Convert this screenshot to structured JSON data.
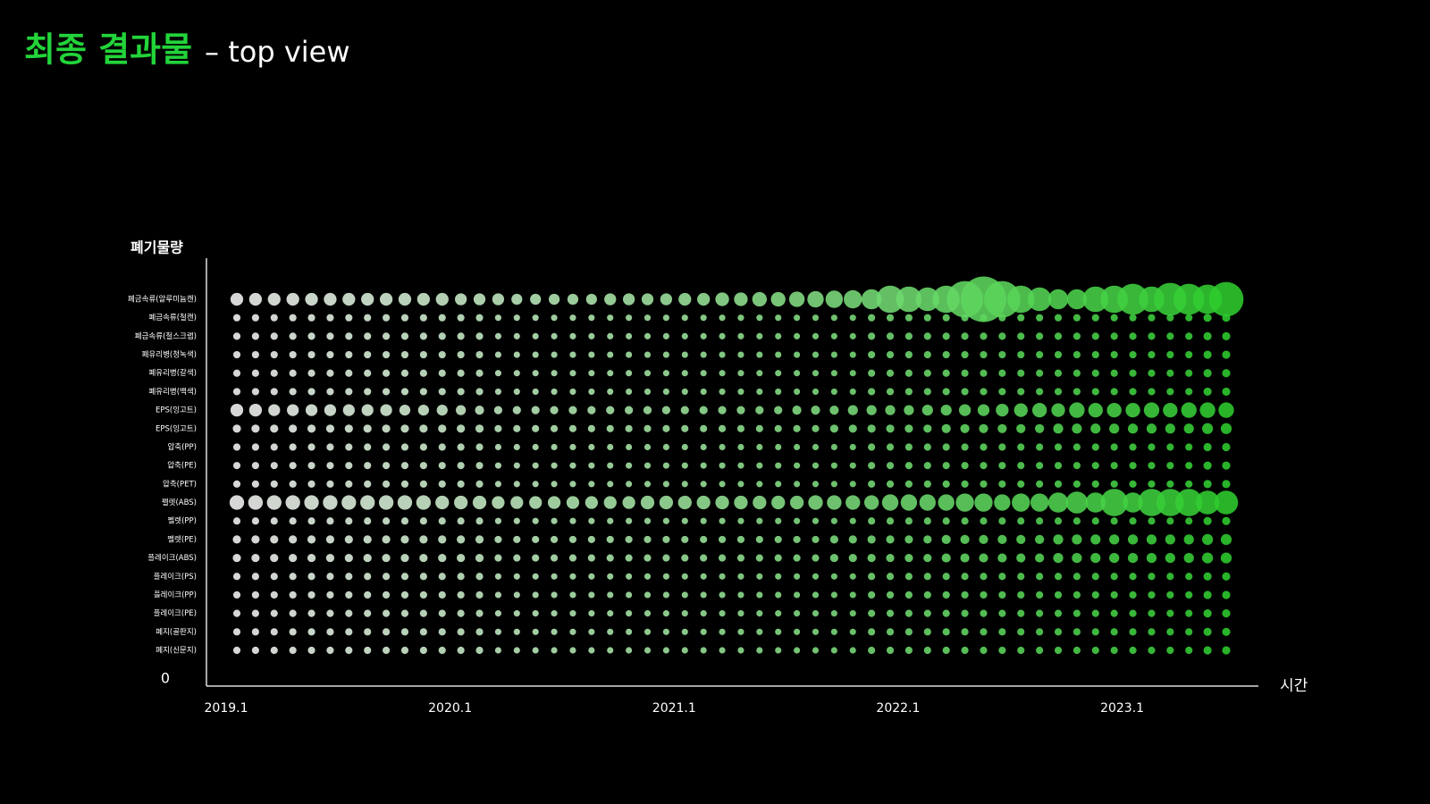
{
  "chart_data": {
    "type": "bubble_grid",
    "title": "최종 결과물",
    "subtitle": "– top view",
    "y_label": "폐기물량",
    "x_label": "시간",
    "yticks": [
      0
    ],
    "color_start": "#f5f5f5",
    "color_end": "#2ecc2e",
    "x": [
      "2019.1",
      null,
      null,
      null,
      null,
      null,
      null,
      null,
      null,
      null,
      null,
      null,
      "2020.1",
      null,
      null,
      null,
      null,
      null,
      null,
      null,
      null,
      null,
      null,
      null,
      "2021.1",
      null,
      null,
      null,
      null,
      null,
      null,
      null,
      null,
      null,
      null,
      null,
      "2022.1",
      null,
      null,
      null,
      null,
      null,
      null,
      null,
      null,
      null,
      null,
      null,
      "2023.1",
      null,
      null,
      null,
      null,
      null
    ],
    "series": [
      {
        "name": "폐금속류(알루미늄캔)",
        "values": [
          14,
          14,
          14,
          14,
          14,
          14,
          14,
          14,
          14,
          14,
          14,
          14,
          13,
          13,
          13,
          12,
          12,
          12,
          12,
          12,
          13,
          13,
          13,
          13,
          14,
          14,
          15,
          15,
          16,
          16,
          17,
          18,
          19,
          20,
          22,
          30,
          28,
          26,
          30,
          40,
          50,
          40,
          30,
          26,
          22,
          22,
          28,
          30,
          34,
          28,
          36,
          34,
          32,
          38
        ]
      },
      {
        "name": "폐금속류(철캔)",
        "values": [
          8,
          8,
          8,
          8,
          8,
          8,
          8,
          8,
          8,
          8,
          8,
          8,
          8,
          8,
          7,
          7,
          7,
          7,
          7,
          7,
          7,
          7,
          7,
          7,
          7,
          7,
          7,
          7,
          7,
          7,
          7,
          7,
          7,
          7,
          8,
          8,
          8,
          8,
          8,
          8,
          8,
          8,
          8,
          8,
          8,
          8,
          8,
          8,
          8,
          8,
          8,
          8,
          9,
          9
        ]
      },
      {
        "name": "폐금속류(철스크랩)",
        "values": [
          8,
          8,
          8,
          8,
          8,
          8,
          8,
          8,
          8,
          8,
          8,
          8,
          8,
          8,
          7,
          7,
          7,
          7,
          7,
          7,
          7,
          7,
          7,
          7,
          7,
          7,
          7,
          7,
          7,
          7,
          7,
          7,
          7,
          7,
          8,
          8,
          8,
          8,
          8,
          8,
          8,
          8,
          8,
          8,
          8,
          8,
          8,
          8,
          8,
          8,
          8,
          8,
          9,
          9
        ]
      },
      {
        "name": "폐유리병(청녹색)",
        "values": [
          8,
          8,
          8,
          8,
          8,
          8,
          8,
          8,
          8,
          8,
          8,
          8,
          8,
          8,
          7,
          7,
          7,
          7,
          7,
          7,
          7,
          7,
          7,
          7,
          7,
          7,
          7,
          7,
          7,
          7,
          7,
          7,
          7,
          7,
          8,
          8,
          8,
          8,
          8,
          8,
          8,
          8,
          8,
          8,
          8,
          8,
          8,
          8,
          8,
          8,
          8,
          8,
          9,
          9
        ]
      },
      {
        "name": "폐유리병(갈색)",
        "values": [
          8,
          8,
          8,
          8,
          8,
          8,
          8,
          8,
          8,
          8,
          8,
          8,
          8,
          8,
          7,
          7,
          7,
          7,
          7,
          7,
          7,
          7,
          7,
          7,
          7,
          7,
          7,
          7,
          7,
          7,
          7,
          7,
          7,
          7,
          8,
          8,
          8,
          8,
          8,
          8,
          8,
          8,
          8,
          8,
          8,
          8,
          8,
          8,
          8,
          8,
          8,
          8,
          9,
          9
        ]
      },
      {
        "name": "폐유리병(백색)",
        "values": [
          8,
          8,
          8,
          8,
          8,
          8,
          8,
          8,
          8,
          8,
          8,
          8,
          8,
          8,
          7,
          7,
          7,
          7,
          7,
          7,
          7,
          7,
          7,
          7,
          7,
          7,
          7,
          7,
          7,
          7,
          7,
          7,
          7,
          7,
          8,
          8,
          8,
          8,
          8,
          8,
          8,
          8,
          8,
          8,
          8,
          8,
          8,
          8,
          8,
          8,
          8,
          8,
          9,
          9
        ]
      },
      {
        "name": "EPS(잉고트)",
        "values": [
          14,
          14,
          13,
          13,
          13,
          13,
          13,
          13,
          13,
          12,
          12,
          12,
          11,
          10,
          9,
          9,
          9,
          9,
          9,
          9,
          9,
          9,
          9,
          9,
          9,
          9,
          9,
          9,
          9,
          9,
          10,
          10,
          10,
          11,
          11,
          11,
          11,
          12,
          12,
          13,
          13,
          14,
          15,
          16,
          15,
          17,
          16,
          16,
          16,
          17,
          16,
          17,
          17,
          17
        ]
      },
      {
        "name": "EPS(잉고트)",
        "values": [
          9,
          9,
          9,
          9,
          9,
          9,
          9,
          9,
          9,
          9,
          9,
          9,
          9,
          9,
          8,
          8,
          8,
          8,
          8,
          8,
          8,
          8,
          8,
          8,
          8,
          8,
          8,
          8,
          8,
          8,
          8,
          8,
          9,
          9,
          9,
          9,
          9,
          9,
          10,
          10,
          10,
          10,
          10,
          10,
          11,
          11,
          11,
          11,
          11,
          11,
          11,
          11,
          12,
          12
        ]
      },
      {
        "name": "압축(PP)",
        "values": [
          8,
          8,
          8,
          8,
          8,
          8,
          8,
          8,
          8,
          8,
          8,
          8,
          8,
          8,
          7,
          7,
          7,
          7,
          7,
          7,
          7,
          7,
          7,
          7,
          7,
          7,
          7,
          7,
          7,
          7,
          7,
          7,
          7,
          7,
          8,
          8,
          8,
          8,
          8,
          8,
          8,
          8,
          8,
          8,
          8,
          8,
          8,
          8,
          8,
          8,
          8,
          8,
          9,
          9
        ]
      },
      {
        "name": "압축(PE)",
        "values": [
          8,
          8,
          8,
          8,
          8,
          8,
          8,
          8,
          8,
          8,
          8,
          8,
          8,
          8,
          7,
          7,
          7,
          7,
          7,
          7,
          7,
          7,
          7,
          7,
          7,
          7,
          7,
          7,
          7,
          7,
          7,
          7,
          7,
          7,
          8,
          8,
          8,
          8,
          8,
          8,
          8,
          8,
          8,
          8,
          8,
          8,
          8,
          8,
          8,
          8,
          8,
          8,
          9,
          9
        ]
      },
      {
        "name": "압축(PET)",
        "values": [
          8,
          8,
          8,
          8,
          8,
          8,
          8,
          8,
          8,
          8,
          8,
          8,
          8,
          8,
          7,
          7,
          7,
          7,
          7,
          7,
          7,
          7,
          7,
          7,
          7,
          7,
          7,
          7,
          7,
          7,
          7,
          7,
          7,
          7,
          8,
          8,
          8,
          8,
          8,
          8,
          8,
          8,
          8,
          8,
          8,
          8,
          8,
          8,
          8,
          8,
          8,
          8,
          9,
          9
        ]
      },
      {
        "name": "펠렛(ABS)",
        "values": [
          16,
          16,
          16,
          16,
          16,
          16,
          16,
          16,
          16,
          16,
          16,
          15,
          15,
          15,
          14,
          14,
          14,
          14,
          14,
          14,
          14,
          14,
          15,
          15,
          15,
          15,
          15,
          15,
          15,
          15,
          15,
          16,
          16,
          16,
          16,
          18,
          18,
          18,
          18,
          20,
          20,
          18,
          20,
          20,
          22,
          24,
          22,
          30,
          22,
          30,
          30,
          30,
          26,
          26
        ]
      },
      {
        "name": "펠렛(PP)",
        "values": [
          8,
          8,
          8,
          8,
          8,
          8,
          8,
          8,
          8,
          8,
          8,
          8,
          8,
          8,
          7,
          7,
          7,
          7,
          7,
          7,
          7,
          7,
          7,
          7,
          7,
          7,
          7,
          7,
          7,
          7,
          7,
          7,
          7,
          7,
          8,
          8,
          8,
          8,
          8,
          8,
          8,
          8,
          8,
          8,
          8,
          8,
          8,
          8,
          8,
          8,
          8,
          8,
          9,
          9
        ]
      },
      {
        "name": "펠렛(PE)",
        "values": [
          9,
          9,
          9,
          9,
          9,
          9,
          9,
          9,
          9,
          9,
          9,
          9,
          9,
          9,
          8,
          8,
          8,
          8,
          8,
          8,
          8,
          8,
          8,
          8,
          8,
          8,
          8,
          8,
          8,
          8,
          8,
          8,
          9,
          9,
          9,
          9,
          9,
          9,
          10,
          10,
          10,
          10,
          10,
          10,
          11,
          11,
          11,
          11,
          11,
          11,
          11,
          11,
          12,
          12
        ]
      },
      {
        "name": "플레이크(ABS)",
        "values": [
          9,
          9,
          9,
          9,
          9,
          9,
          9,
          9,
          9,
          9,
          9,
          9,
          9,
          9,
          8,
          8,
          8,
          8,
          8,
          8,
          8,
          8,
          8,
          8,
          8,
          8,
          8,
          8,
          8,
          8,
          8,
          8,
          9,
          9,
          9,
          9,
          9,
          9,
          10,
          10,
          10,
          10,
          10,
          10,
          11,
          11,
          11,
          11,
          11,
          11,
          11,
          11,
          12,
          12
        ]
      },
      {
        "name": "플레이크(PS)",
        "values": [
          8,
          8,
          8,
          8,
          8,
          8,
          8,
          8,
          8,
          8,
          8,
          8,
          8,
          8,
          7,
          7,
          7,
          7,
          7,
          7,
          7,
          7,
          7,
          7,
          7,
          7,
          7,
          7,
          7,
          7,
          7,
          7,
          7,
          7,
          8,
          8,
          8,
          8,
          8,
          8,
          8,
          8,
          8,
          8,
          8,
          8,
          8,
          8,
          8,
          8,
          8,
          8,
          9,
          9
        ]
      },
      {
        "name": "플레이크(PP)",
        "values": [
          8,
          8,
          8,
          8,
          8,
          8,
          8,
          8,
          8,
          8,
          8,
          8,
          8,
          8,
          7,
          7,
          7,
          7,
          7,
          7,
          7,
          7,
          7,
          7,
          7,
          7,
          7,
          7,
          7,
          7,
          7,
          7,
          7,
          7,
          8,
          8,
          8,
          8,
          8,
          8,
          8,
          8,
          8,
          8,
          8,
          8,
          8,
          8,
          8,
          8,
          8,
          8,
          9,
          9
        ]
      },
      {
        "name": "플레이크(PE)",
        "values": [
          8,
          8,
          8,
          8,
          8,
          8,
          8,
          8,
          8,
          8,
          8,
          8,
          8,
          8,
          7,
          7,
          7,
          7,
          7,
          7,
          7,
          7,
          7,
          7,
          7,
          7,
          7,
          7,
          7,
          7,
          7,
          7,
          7,
          7,
          8,
          8,
          8,
          8,
          8,
          8,
          8,
          8,
          8,
          8,
          8,
          8,
          8,
          8,
          8,
          8,
          8,
          8,
          9,
          9
        ]
      },
      {
        "name": "폐지(골판지)",
        "values": [
          8,
          8,
          8,
          8,
          8,
          8,
          8,
          8,
          8,
          8,
          8,
          8,
          8,
          8,
          7,
          7,
          7,
          7,
          7,
          7,
          7,
          7,
          7,
          7,
          7,
          7,
          7,
          7,
          7,
          7,
          7,
          7,
          7,
          7,
          8,
          8,
          8,
          8,
          8,
          8,
          8,
          8,
          8,
          8,
          8,
          8,
          8,
          8,
          8,
          8,
          8,
          8,
          9,
          9
        ]
      },
      {
        "name": "폐지(신문지)",
        "values": [
          8,
          8,
          8,
          8,
          8,
          8,
          8,
          8,
          8,
          8,
          8,
          8,
          8,
          8,
          7,
          7,
          7,
          7,
          7,
          7,
          7,
          7,
          7,
          7,
          7,
          7,
          7,
          7,
          7,
          7,
          7,
          7,
          7,
          7,
          8,
          8,
          8,
          8,
          8,
          8,
          8,
          8,
          8,
          8,
          8,
          8,
          8,
          8,
          8,
          8,
          8,
          8,
          9,
          9
        ]
      }
    ]
  }
}
